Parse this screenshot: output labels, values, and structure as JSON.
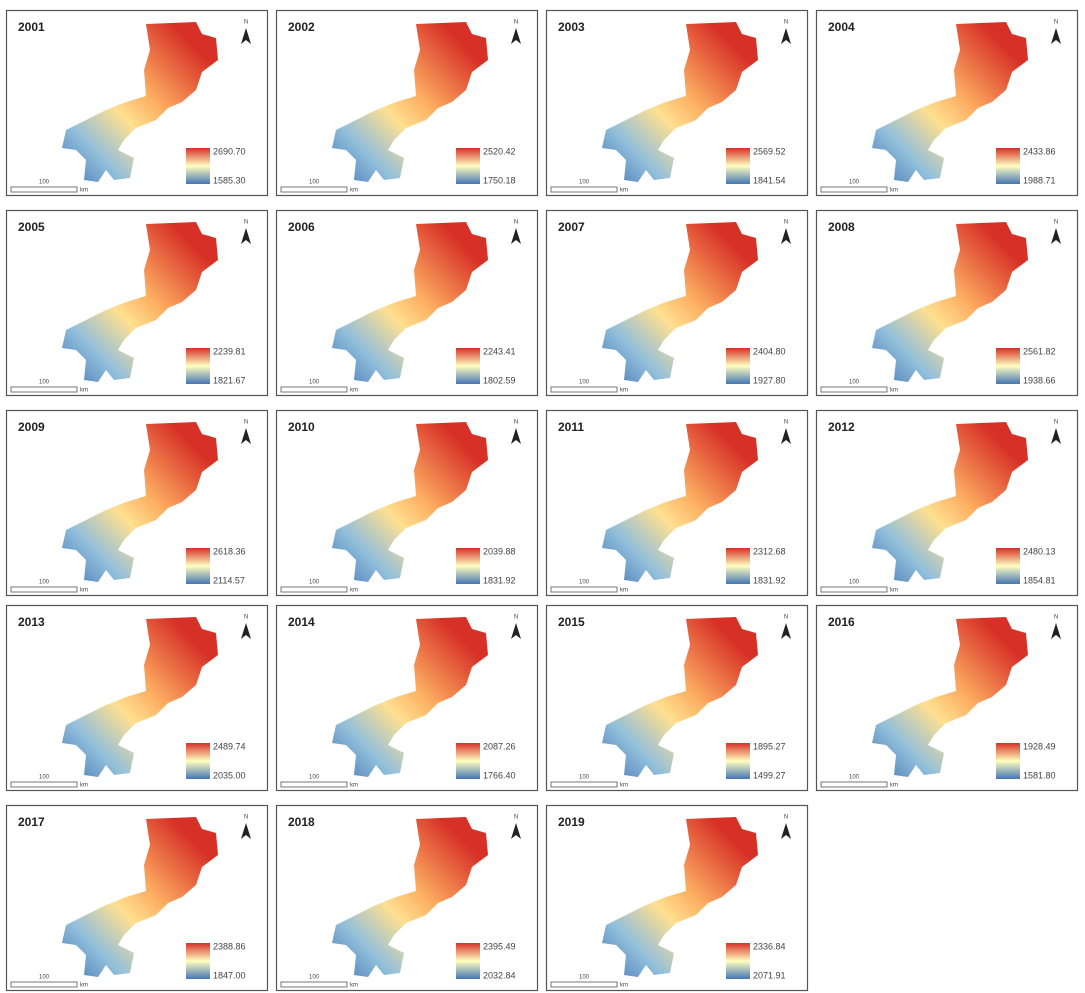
{
  "north_label": "N",
  "scale_label": "100",
  "scale_unit": "km",
  "panels": [
    {
      "year": "2001",
      "legend_max": "2690.70",
      "legend_min": "1585.30"
    },
    {
      "year": "2002",
      "legend_max": "2520.42",
      "legend_min": "1750.18"
    },
    {
      "year": "2003",
      "legend_max": "2569.52",
      "legend_min": "1841.54"
    },
    {
      "year": "2004",
      "legend_max": "2433.86",
      "legend_min": "1988.71"
    },
    {
      "year": "2005",
      "legend_max": "2239.81",
      "legend_min": "1821.67"
    },
    {
      "year": "2006",
      "legend_max": "2243.41",
      "legend_min": "1802.59"
    },
    {
      "year": "2007",
      "legend_max": "2404.80",
      "legend_min": "1927.80"
    },
    {
      "year": "2008",
      "legend_max": "2561.82",
      "legend_min": "1938.66"
    },
    {
      "year": "2009",
      "legend_max": "2618.36",
      "legend_min": "2114.57"
    },
    {
      "year": "2010",
      "legend_max": "2039.88",
      "legend_min": "1831.92"
    },
    {
      "year": "2011",
      "legend_max": "2312.68",
      "legend_min": "1831.92"
    },
    {
      "year": "2012",
      "legend_max": "2480.13",
      "legend_min": "1854.81"
    },
    {
      "year": "2013",
      "legend_max": "2489.74",
      "legend_min": "2035.00"
    },
    {
      "year": "2014",
      "legend_max": "2087.26",
      "legend_min": "1766.40"
    },
    {
      "year": "2015",
      "legend_max": "1895.27",
      "legend_min": "1499.27"
    },
    {
      "year": "2016",
      "legend_max": "1928.49",
      "legend_min": "1581.80"
    },
    {
      "year": "2017",
      "legend_max": "2388.86",
      "legend_min": "1847.00"
    },
    {
      "year": "2018",
      "legend_max": "2395.49",
      "legend_min": "2032.84"
    },
    {
      "year": "2019",
      "legend_max": "2336.84",
      "legend_min": "2071.91"
    }
  ]
}
